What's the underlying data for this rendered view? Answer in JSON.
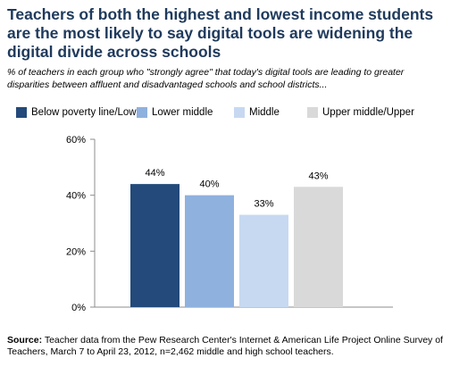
{
  "header": {
    "title": "Teachers of both the highest and lowest income students are the most likely to say digital tools are widening the digital divide across schools",
    "subtitle": "% of teachers in each group who \"strongly agree\" that today's digital tools are leading to greater disparities between affluent and disadvantaged schools and school districts..."
  },
  "source": {
    "label": "Source:",
    "text": "Teacher data from the Pew Research Center's Internet & American Life Project Online Survey of Teachers, March 7 to April 23, 2012, n=2,462 middle and high school teachers."
  },
  "chart_data": {
    "type": "bar",
    "categories": [
      "Below poverty line/Low",
      "Lower middle",
      "Middle",
      "Upper middle/Upper"
    ],
    "values": [
      44,
      40,
      33,
      43
    ],
    "value_labels": [
      "44%",
      "40%",
      "33%",
      "43%"
    ],
    "colors": [
      "#234a7a",
      "#8fb1de",
      "#c7d9f1",
      "#d9d9d9"
    ],
    "yticks": [
      0,
      20,
      40,
      60
    ],
    "ytick_labels": [
      "0%",
      "20%",
      "40%",
      "60%"
    ],
    "ylim": [
      0,
      60
    ],
    "grid": false,
    "legend_position": "top",
    "axis_color": "#8c8c8c"
  }
}
